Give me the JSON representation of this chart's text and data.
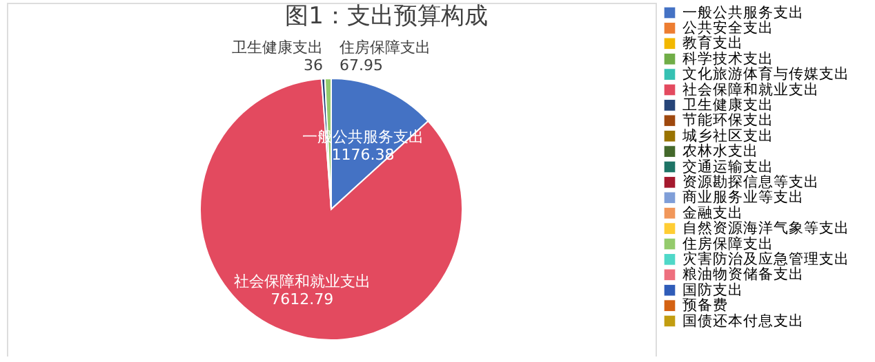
{
  "chart_data": {
    "type": "pie",
    "title": "图1：支出预算构成",
    "categories": [
      "一般公共服务支出",
      "公共安全支出",
      "教育支出",
      "科学技术支出",
      "文化旅游体育与传媒支出",
      "社会保障和就业支出",
      "卫生健康支出",
      "节能环保支出",
      "城乡社区支出",
      "农林水支出",
      "交通运输支出",
      "资源勘探信息等支出",
      "商业服务业等支出",
      "金融支出",
      "自然资源海洋气象等支出",
      "住房保障支出",
      "灾害防治及应急管理支出",
      "粮油物资储备支出",
      "国防支出",
      "预备费",
      "国债还本付息支出"
    ],
    "values": [
      1176.38,
      null,
      null,
      null,
      null,
      7612.79,
      36,
      null,
      null,
      null,
      null,
      null,
      null,
      null,
      null,
      67.95,
      null,
      null,
      null,
      null,
      null
    ],
    "colors": [
      "#4472c4",
      "#ed7d31",
      "#f2b800",
      "#70ad47",
      "#36c1b3",
      "#e34a5f",
      "#264478",
      "#9e480e",
      "#997300",
      "#43682b",
      "#1e7466",
      "#a5192e",
      "#7f9ed8",
      "#f1975a",
      "#ffcd33",
      "#94cb6c",
      "#4fd8c8",
      "#ee6f7e",
      "#2f5cb8",
      "#d46112",
      "#c29d10"
    ],
    "data_labels": true,
    "legend": "right"
  }
}
